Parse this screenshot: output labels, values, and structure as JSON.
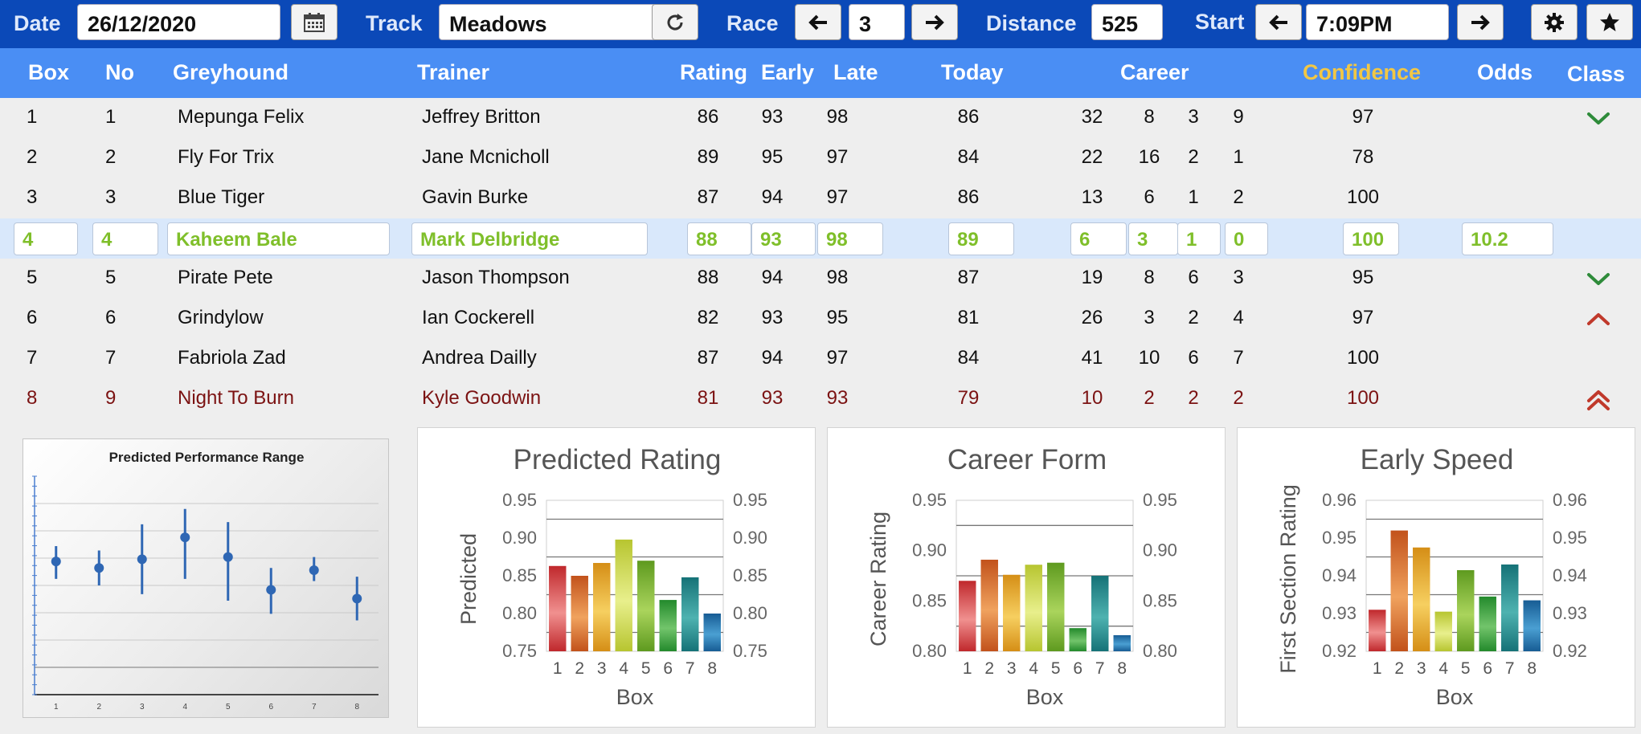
{
  "toolbar": {
    "date_label": "Date",
    "date_value": "26/12/2020",
    "track_label": "Track",
    "track_value": "Meadows",
    "race_label": "Race",
    "race_value": "3",
    "distance_label": "Distance",
    "distance_value": "525",
    "start_label": "Start",
    "start_value": "7:09PM",
    "icons": [
      "calendar-icon",
      "refresh-icon",
      "arrow-left-icon",
      "arrow-right-icon",
      "gear-icon",
      "star-icon"
    ]
  },
  "columns": {
    "box": "Box",
    "no": "No",
    "greyhound": "Greyhound",
    "trainer": "Trainer",
    "rating": "Rating",
    "early": "Early",
    "late": "Late",
    "today": "Today",
    "career": "Career",
    "confidence": "Confidence",
    "odds": "Odds",
    "class": "Class"
  },
  "colors": {
    "toolbar": "#0b49b8",
    "header": "#4a8ef4",
    "confidence_header": "#f2c744",
    "selected_text": "#7fbf2a",
    "scratched_text": "#7b1212",
    "class_up": "#2e8b3a",
    "class_down": "#c0392b"
  },
  "rows": [
    {
      "box": "1",
      "no": "1",
      "greyhound": "Mepunga Felix",
      "trainer": "Jeffrey Britton",
      "rating": "86",
      "early": "93",
      "late": "98",
      "today": "86",
      "c1": "32",
      "c2": "8",
      "c3": "3",
      "c4": "9",
      "confidence": "97",
      "odds": "",
      "class_icon": "chevron-down-icon",
      "style": "normal"
    },
    {
      "box": "2",
      "no": "2",
      "greyhound": "Fly For Trix",
      "trainer": "Jane Mcnicholl",
      "rating": "89",
      "early": "95",
      "late": "97",
      "today": "84",
      "c1": "22",
      "c2": "16",
      "c3": "2",
      "c4": "1",
      "confidence": "78",
      "odds": "",
      "class_icon": "",
      "style": "normal"
    },
    {
      "box": "3",
      "no": "3",
      "greyhound": "Blue Tiger",
      "trainer": "Gavin Burke",
      "rating": "87",
      "early": "94",
      "late": "97",
      "today": "86",
      "c1": "13",
      "c2": "6",
      "c3": "1",
      "c4": "2",
      "confidence": "100",
      "odds": "",
      "class_icon": "",
      "style": "normal"
    },
    {
      "box": "4",
      "no": "4",
      "greyhound": "Kaheem Bale",
      "trainer": "Mark Delbridge",
      "rating": "88",
      "early": "93",
      "late": "98",
      "today": "89",
      "c1": "6",
      "c2": "3",
      "c3": "1",
      "c4": "0",
      "confidence": "100",
      "odds": "10.2",
      "class_icon": "",
      "style": "selected"
    },
    {
      "box": "5",
      "no": "5",
      "greyhound": "Pirate Pete",
      "trainer": "Jason Thompson",
      "rating": "88",
      "early": "94",
      "late": "98",
      "today": "87",
      "c1": "19",
      "c2": "8",
      "c3": "6",
      "c4": "3",
      "confidence": "95",
      "odds": "",
      "class_icon": "chevron-down-icon",
      "style": "normal"
    },
    {
      "box": "6",
      "no": "6",
      "greyhound": "Grindylow",
      "trainer": "Ian Cockerell",
      "rating": "82",
      "early": "93",
      "late": "95",
      "today": "81",
      "c1": "26",
      "c2": "3",
      "c3": "2",
      "c4": "4",
      "confidence": "97",
      "odds": "",
      "class_icon": "chevron-up-icon",
      "style": "normal"
    },
    {
      "box": "7",
      "no": "7",
      "greyhound": "Fabriola Zad",
      "trainer": "Andrea Dailly",
      "rating": "87",
      "early": "94",
      "late": "97",
      "today": "84",
      "c1": "41",
      "c2": "10",
      "c3": "6",
      "c4": "7",
      "confidence": "100",
      "odds": "",
      "class_icon": "",
      "style": "normal"
    },
    {
      "box": "8",
      "no": "9",
      "greyhound": "Night To Burn",
      "trainer": "Kyle Goodwin",
      "rating": "81",
      "early": "93",
      "late": "93",
      "today": "79",
      "c1": "10",
      "c2": "2",
      "c3": "2",
      "c4": "2",
      "confidence": "100",
      "odds": "",
      "class_icon": "double-chevron-up-icon",
      "style": "red"
    }
  ],
  "chart_data": [
    {
      "type": "scatter",
      "title": "Predicted Performance Range",
      "x": [
        1,
        2,
        3,
        4,
        5,
        6,
        7,
        8
      ],
      "y": [
        0.61,
        0.58,
        0.62,
        0.72,
        0.63,
        0.48,
        0.57,
        0.44
      ],
      "ylow": [
        0.53,
        0.5,
        0.46,
        0.53,
        0.43,
        0.37,
        0.52,
        0.34
      ],
      "yhigh": [
        0.68,
        0.66,
        0.78,
        0.85,
        0.79,
        0.58,
        0.63,
        0.54
      ],
      "ylim": [
        0,
        1
      ],
      "grid": true
    },
    {
      "type": "bar",
      "title": "Predicted Rating",
      "categories": [
        "1",
        "2",
        "3",
        "4",
        "5",
        "6",
        "7",
        "8"
      ],
      "values": [
        0.863,
        0.85,
        0.867,
        0.898,
        0.87,
        0.818,
        0.848,
        0.8
      ],
      "xlabel": "Box",
      "ylabel": "Predicted",
      "ylim": [
        0.75,
        0.95
      ],
      "yticks": [
        "0.75",
        "0.80",
        "0.85",
        "0.90",
        "0.95"
      ],
      "gridlines": [
        0.775,
        0.825,
        0.875,
        0.925
      ]
    },
    {
      "type": "bar",
      "title": "Career Form",
      "categories": [
        "1",
        "2",
        "3",
        "4",
        "5",
        "6",
        "7",
        "8"
      ],
      "values": [
        0.87,
        0.891,
        0.876,
        0.886,
        0.888,
        0.823,
        0.875,
        0.816
      ],
      "xlabel": "Box",
      "ylabel": "Career Rating",
      "ylim": [
        0.8,
        0.95
      ],
      "yticks": [
        "0.80",
        "0.85",
        "0.90",
        "0.95"
      ],
      "gridlines": [
        0.825,
        0.875,
        0.925
      ]
    },
    {
      "type": "bar",
      "title": "Early Speed",
      "categories": [
        "1",
        "2",
        "3",
        "4",
        "5",
        "6",
        "7",
        "8"
      ],
      "values": [
        0.931,
        0.952,
        0.9475,
        0.9305,
        0.9415,
        0.9345,
        0.943,
        0.9335
      ],
      "xlabel": "Box",
      "ylabel": "First Section Rating",
      "ylim": [
        0.92,
        0.96
      ],
      "yticks": [
        "0.92",
        "0.93",
        "0.94",
        "0.95",
        "0.96"
      ],
      "gridlines": [
        0.925,
        0.935,
        0.945,
        0.955
      ]
    }
  ]
}
